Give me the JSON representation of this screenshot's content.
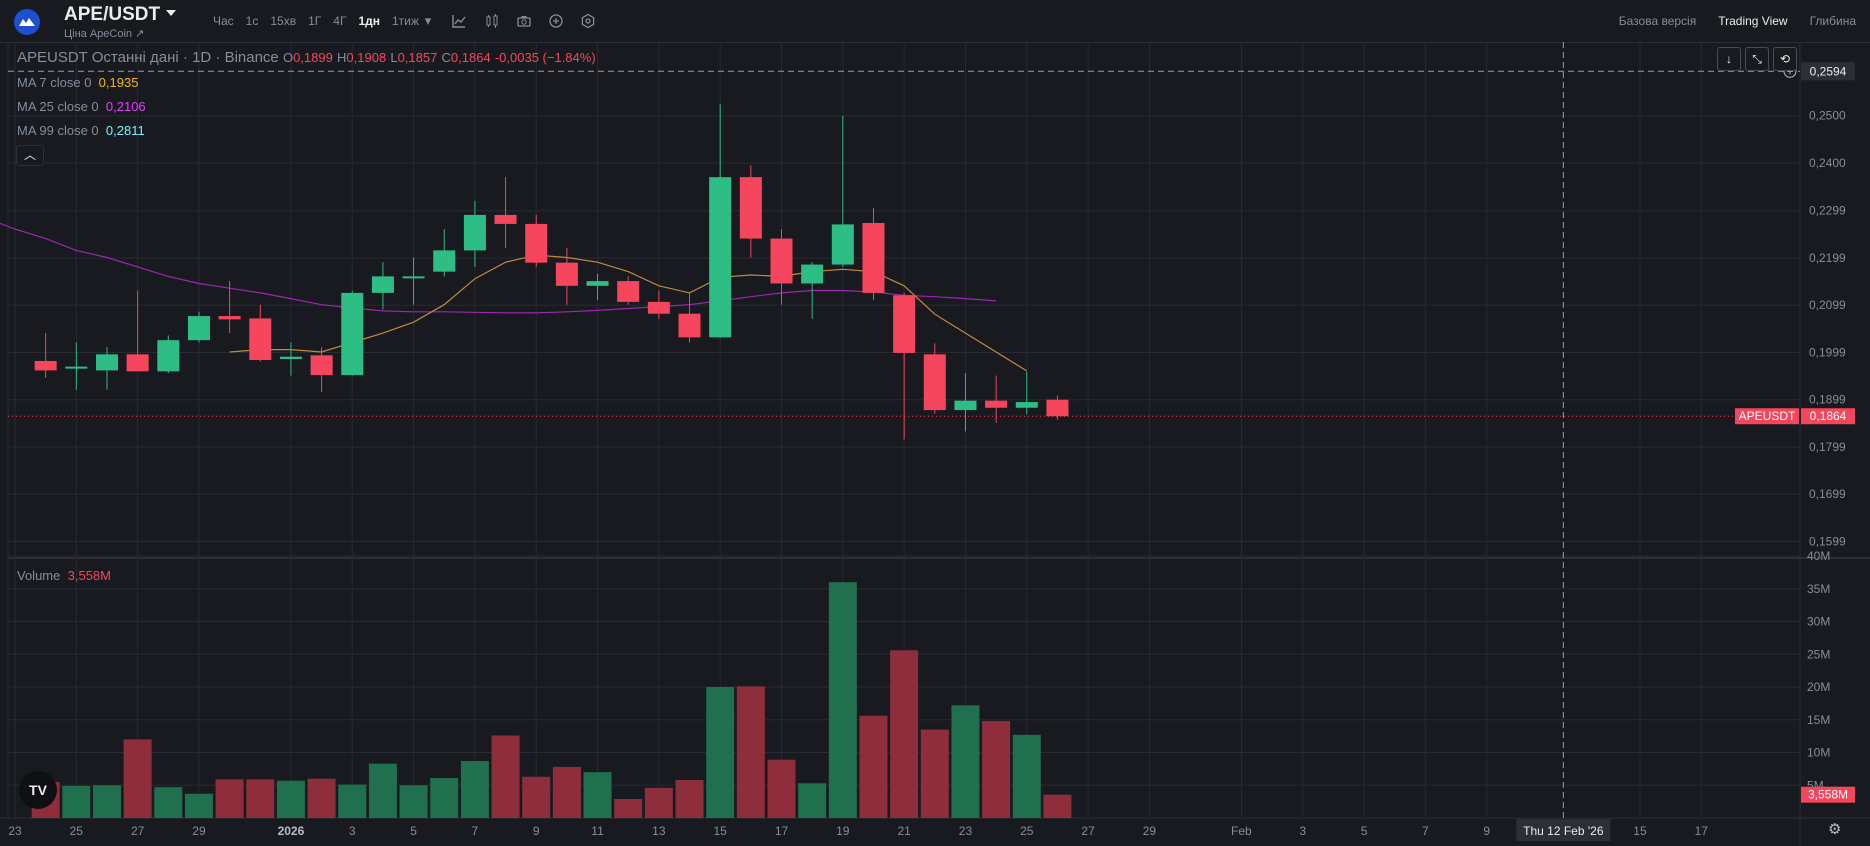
{
  "header": {
    "pair": "APE/USDT",
    "subtitle": "Ціна ApeCoin ↗",
    "intervals": [
      "Час",
      "1с",
      "15хв",
      "1Г",
      "4Г",
      "1дн",
      "1тиж"
    ],
    "active_interval": "1дн",
    "views": [
      "Базова версія",
      "Trading View",
      "Глибина"
    ],
    "active_view": "Trading View"
  },
  "legend": {
    "symbol": "APEUSDT Останні дані · 1D · Binance",
    "o_label": "O",
    "o": "0,1899",
    "h_label": "H",
    "h": "0,1908",
    "l_label": "L",
    "l": "0,1857",
    "c_label": "C",
    "c": "0,1864",
    "change": "-0,0035 (−1.84%)"
  },
  "ma": [
    {
      "label": "MA 7 close 0",
      "value": "0,1935",
      "color": "#f0b90b"
    },
    {
      "label": "MA 25 close 0",
      "value": "0,2106",
      "color": "#e040fb"
    },
    {
      "label": "MA 99 close 0",
      "value": "0,2811",
      "color": "#6ff5ff"
    }
  ],
  "volume_legend": {
    "label": "Volume",
    "value": "3,558M"
  },
  "price_tag": {
    "symbol": "APEUSDT",
    "value": "0,1864"
  },
  "crosshair": {
    "price": "0,2594",
    "date": "Thu 12 Feb '26"
  },
  "volume_tag": "3,558M",
  "colors": {
    "up": "#2ebd85",
    "down": "#f6465d",
    "ma7": "#c08a3e",
    "ma25": "#9c27b0"
  },
  "chart_data": {
    "type": "candlestick",
    "price_axis": {
      "ticks": [
        "0,2500",
        "0,2400",
        "0,2299",
        "0,2199",
        "0,2099",
        "0,1999",
        "0,1899",
        "0,1799",
        "0,1699",
        "0,1599"
      ],
      "range": [
        0.1564,
        0.2656
      ]
    },
    "volume_axis": {
      "ticks": [
        "40M",
        "35M",
        "30M",
        "25M",
        "20M",
        "15M",
        "10M",
        "5M"
      ],
      "range": [
        0,
        40
      ]
    },
    "x_ticks": [
      {
        "day": -1,
        "label": "23"
      },
      {
        "day": 1,
        "label": "25"
      },
      {
        "day": 3,
        "label": "27"
      },
      {
        "day": 5,
        "label": "29"
      },
      {
        "day": 8,
        "label": "2026"
      },
      {
        "day": 10,
        "label": "3"
      },
      {
        "day": 12,
        "label": "5"
      },
      {
        "day": 14,
        "label": "7"
      },
      {
        "day": 16,
        "label": "9"
      },
      {
        "day": 18,
        "label": "11"
      },
      {
        "day": 20,
        "label": "13"
      },
      {
        "day": 22,
        "label": "15"
      },
      {
        "day": 24,
        "label": "17"
      },
      {
        "day": 26,
        "label": "19"
      },
      {
        "day": 28,
        "label": "21"
      },
      {
        "day": 30,
        "label": "23"
      },
      {
        "day": 32,
        "label": "25"
      },
      {
        "day": 34,
        "label": "27"
      },
      {
        "day": 36,
        "label": "29"
      },
      {
        "day": 39,
        "label": "Feb"
      },
      {
        "day": 41,
        "label": "3"
      },
      {
        "day": 43,
        "label": "5"
      },
      {
        "day": 45,
        "label": "7"
      },
      {
        "day": 47,
        "label": "9"
      },
      {
        "day": 52,
        "label": "15"
      },
      {
        "day": 54,
        "label": "17"
      }
    ],
    "candles": [
      {
        "date": "Dec 24",
        "o": 0.1981,
        "h": 0.204,
        "l": 0.1945,
        "c": 0.1961,
        "v": 5.5
      },
      {
        "date": "Dec 25",
        "o": 0.1969,
        "h": 0.202,
        "l": 0.192,
        "c": 0.1969,
        "v": 4.9
      },
      {
        "date": "Dec 26",
        "o": 0.1961,
        "h": 0.201,
        "l": 0.192,
        "c": 0.1995,
        "v": 5.0
      },
      {
        "date": "Dec 27",
        "o": 0.1995,
        "h": 0.213,
        "l": 0.196,
        "c": 0.1959,
        "v": 12.0
      },
      {
        "date": "Dec 28",
        "o": 0.1959,
        "h": 0.2035,
        "l": 0.1955,
        "c": 0.2025,
        "v": 4.7
      },
      {
        "date": "Dec 29",
        "o": 0.2025,
        "h": 0.2085,
        "l": 0.202,
        "c": 0.2076,
        "v": 3.7
      },
      {
        "date": "Dec 30",
        "o": 0.2076,
        "h": 0.215,
        "l": 0.204,
        "c": 0.2069,
        "v": 5.9
      },
      {
        "date": "Dec 31",
        "o": 0.2071,
        "h": 0.21,
        "l": 0.198,
        "c": 0.1983,
        "v": 5.9
      },
      {
        "date": "Jan 1",
        "o": 0.1985,
        "h": 0.202,
        "l": 0.195,
        "c": 0.199,
        "v": 5.7
      },
      {
        "date": "Jan 2",
        "o": 0.1993,
        "h": 0.201,
        "l": 0.1915,
        "c": 0.1951,
        "v": 6.0
      },
      {
        "date": "Jan 3",
        "o": 0.1951,
        "h": 0.213,
        "l": 0.195,
        "c": 0.2125,
        "v": 5.1
      },
      {
        "date": "Jan 4",
        "o": 0.2125,
        "h": 0.219,
        "l": 0.209,
        "c": 0.216,
        "v": 8.3
      },
      {
        "date": "Jan 5",
        "o": 0.216,
        "h": 0.22,
        "l": 0.21,
        "c": 0.216,
        "v": 5.0
      },
      {
        "date": "Jan 6",
        "o": 0.217,
        "h": 0.226,
        "l": 0.216,
        "c": 0.2215,
        "v": 6.1
      },
      {
        "date": "Jan 7",
        "o": 0.2215,
        "h": 0.232,
        "l": 0.218,
        "c": 0.229,
        "v": 8.7
      },
      {
        "date": "Jan 8",
        "o": 0.229,
        "h": 0.237,
        "l": 0.222,
        "c": 0.2271,
        "v": 12.6
      },
      {
        "date": "Jan 9",
        "o": 0.2271,
        "h": 0.229,
        "l": 0.218,
        "c": 0.2189,
        "v": 6.3
      },
      {
        "date": "Jan 10",
        "o": 0.2189,
        "h": 0.222,
        "l": 0.21,
        "c": 0.214,
        "v": 7.8
      },
      {
        "date": "Jan 11",
        "o": 0.214,
        "h": 0.2165,
        "l": 0.211,
        "c": 0.215,
        "v": 7.0
      },
      {
        "date": "Jan 12",
        "o": 0.215,
        "h": 0.216,
        "l": 0.21,
        "c": 0.2106,
        "v": 2.9
      },
      {
        "date": "Jan 13",
        "o": 0.2106,
        "h": 0.213,
        "l": 0.207,
        "c": 0.2081,
        "v": 4.6
      },
      {
        "date": "Jan 14",
        "o": 0.2081,
        "h": 0.2125,
        "l": 0.202,
        "c": 0.2031,
        "v": 5.8
      },
      {
        "date": "Jan 15",
        "o": 0.2031,
        "h": 0.2525,
        "l": 0.203,
        "c": 0.237,
        "v": 20.0
      },
      {
        "date": "Jan 16",
        "o": 0.237,
        "h": 0.2395,
        "l": 0.22,
        "c": 0.224,
        "v": 20.1
      },
      {
        "date": "Jan 17",
        "o": 0.224,
        "h": 0.226,
        "l": 0.21,
        "c": 0.2145,
        "v": 8.9
      },
      {
        "date": "Jan 18",
        "o": 0.2145,
        "h": 0.219,
        "l": 0.207,
        "c": 0.2185,
        "v": 5.3
      },
      {
        "date": "Jan 19",
        "o": 0.2185,
        "h": 0.25,
        "l": 0.218,
        "c": 0.227,
        "v": 36.0
      },
      {
        "date": "Jan 20",
        "o": 0.2273,
        "h": 0.2305,
        "l": 0.211,
        "c": 0.2125,
        "v": 15.6
      },
      {
        "date": "Jan 21",
        "o": 0.212,
        "h": 0.2125,
        "l": 0.1815,
        "c": 0.1998,
        "v": 25.6
      },
      {
        "date": "Jan 22",
        "o": 0.1995,
        "h": 0.2018,
        "l": 0.187,
        "c": 0.1877,
        "v": 13.5
      },
      {
        "date": "Jan 23",
        "o": 0.1877,
        "h": 0.1955,
        "l": 0.1832,
        "c": 0.1897,
        "v": 17.2
      },
      {
        "date": "Jan 24",
        "o": 0.1897,
        "h": 0.195,
        "l": 0.185,
        "c": 0.1882,
        "v": 14.8
      },
      {
        "date": "Jan 25",
        "o": 0.1882,
        "h": 0.1958,
        "l": 0.1868,
        "c": 0.1894,
        "v": 12.7
      },
      {
        "date": "Jan 26",
        "o": 0.1899,
        "h": 0.1908,
        "l": 0.1857,
        "c": 0.1864,
        "v": 3.558
      }
    ],
    "ma7": [
      [
        6,
        0.2
      ],
      [
        7,
        0.2005
      ],
      [
        8,
        0.2005
      ],
      [
        9,
        0.2
      ],
      [
        10,
        0.202
      ],
      [
        11,
        0.204
      ],
      [
        12,
        0.2063
      ],
      [
        13,
        0.21
      ],
      [
        14,
        0.2155
      ],
      [
        15,
        0.219
      ],
      [
        16,
        0.2205
      ],
      [
        17,
        0.22
      ],
      [
        18,
        0.219
      ],
      [
        19,
        0.217
      ],
      [
        20,
        0.214
      ],
      [
        21,
        0.2125
      ],
      [
        22,
        0.2158
      ],
      [
        23,
        0.2163
      ],
      [
        24,
        0.216
      ],
      [
        25,
        0.217
      ],
      [
        26,
        0.2175
      ],
      [
        27,
        0.217
      ],
      [
        28,
        0.214
      ],
      [
        29,
        0.208
      ],
      [
        30,
        0.204
      ],
      [
        31,
        0.2
      ],
      [
        32,
        0.196
      ]
    ],
    "ma25": [
      [
        -2,
        0.2285
      ],
      [
        -1,
        0.226
      ],
      [
        0,
        0.224
      ],
      [
        1,
        0.2215
      ],
      [
        2,
        0.22
      ],
      [
        3,
        0.218
      ],
      [
        4,
        0.216
      ],
      [
        5,
        0.2145
      ],
      [
        6,
        0.2135
      ],
      [
        7,
        0.2125
      ],
      [
        8,
        0.2113
      ],
      [
        9,
        0.21
      ],
      [
        10,
        0.2093
      ],
      [
        11,
        0.2087
      ],
      [
        12,
        0.2085
      ],
      [
        13,
        0.2085
      ],
      [
        14,
        0.2084
      ],
      [
        15,
        0.2083
      ],
      [
        16,
        0.2083
      ],
      [
        17,
        0.2085
      ],
      [
        18,
        0.2088
      ],
      [
        19,
        0.2092
      ],
      [
        20,
        0.2096
      ],
      [
        21,
        0.21
      ],
      [
        22,
        0.2108
      ],
      [
        23,
        0.2117
      ],
      [
        24,
        0.2125
      ],
      [
        25,
        0.213
      ],
      [
        26,
        0.213
      ],
      [
        27,
        0.2127
      ],
      [
        28,
        0.212
      ],
      [
        29,
        0.2117
      ],
      [
        30,
        0.2113
      ],
      [
        31,
        0.2108
      ]
    ]
  }
}
